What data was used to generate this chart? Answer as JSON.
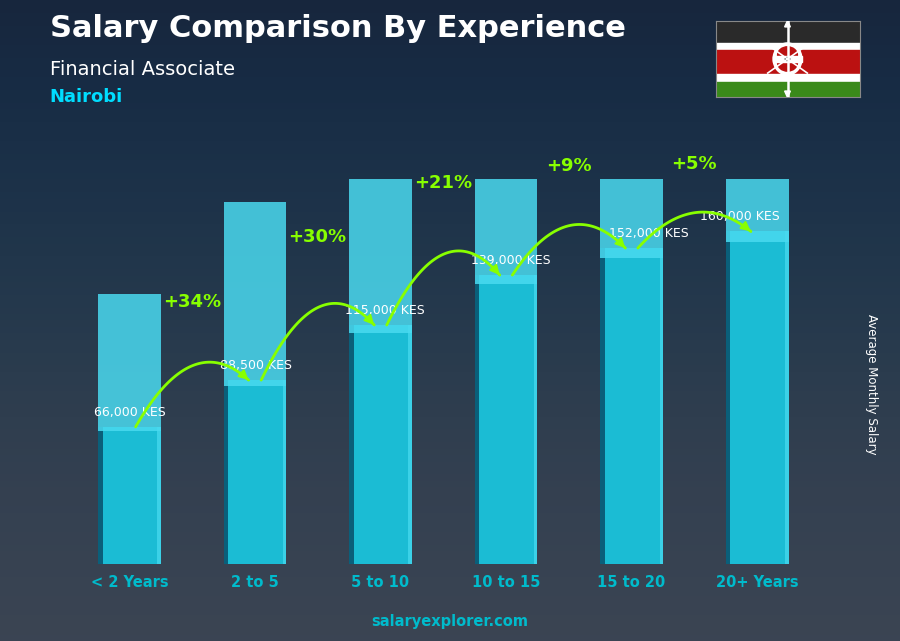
{
  "title": "Salary Comparison By Experience",
  "subtitle": "Financial Associate",
  "city": "Nairobi",
  "categories": [
    "< 2 Years",
    "2 to 5",
    "5 to 10",
    "10 to 15",
    "15 to 20",
    "20+ Years"
  ],
  "values": [
    66000,
    88500,
    115000,
    139000,
    152000,
    160000
  ],
  "labels": [
    "66,000 KES",
    "88,500 KES",
    "115,000 KES",
    "139,000 KES",
    "152,000 KES",
    "160,000 KES"
  ],
  "pct_changes": [
    "+34%",
    "+30%",
    "+21%",
    "+9%",
    "+5%"
  ],
  "bar_color_main": "#1BBCD4",
  "bar_color_light": "#4ADAF0",
  "bar_color_dark": "#0D7A9A",
  "bar_color_left": "#0A5F7A",
  "bg_color_top": "#1a2535",
  "bg_color_bot": "#2a3a4a",
  "title_color": "#FFFFFF",
  "subtitle_color": "#FFFFFF",
  "city_color": "#00DDFF",
  "label_color": "#FFFFFF",
  "pct_color": "#88FF00",
  "tick_color": "#00BBCC",
  "watermark": "salaryexplorer.com",
  "ylabel": "Average Monthly Salary",
  "ylim_max": 185000,
  "bar_width": 0.5,
  "label_offsets": [
    0,
    0,
    0,
    0,
    0,
    0
  ],
  "arc_heights": [
    25000,
    30000,
    32000,
    28000,
    22000
  ],
  "pct_text_offsets": [
    8000,
    8000,
    8000,
    7000,
    6000
  ]
}
